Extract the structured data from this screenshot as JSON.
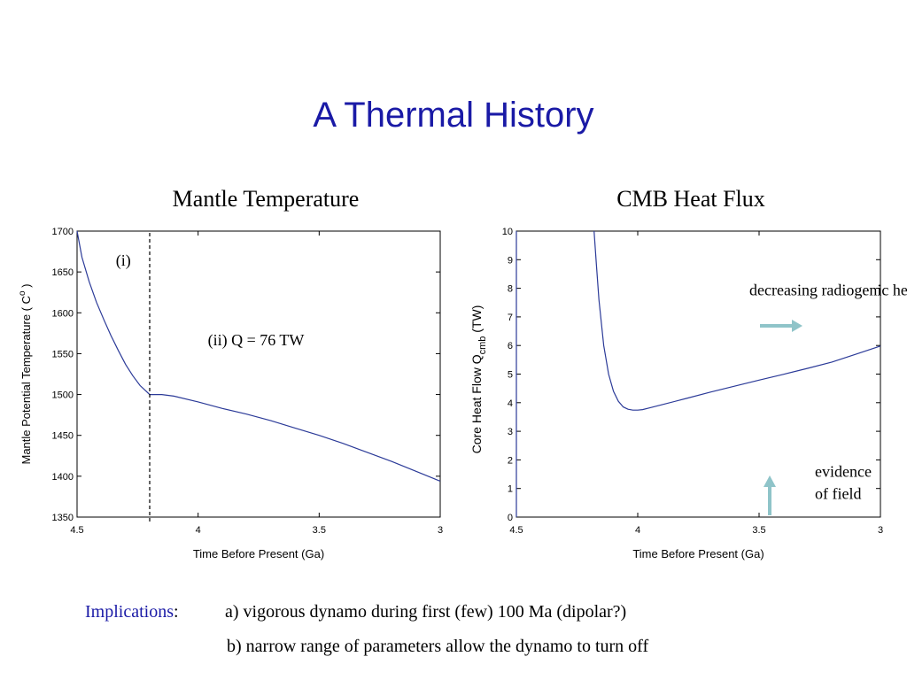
{
  "title": "A Thermal History",
  "implications": {
    "label": "Implications",
    "colon": ":",
    "a": "a)  vigorous dynamo during first (few) 100 Ma  (dipolar?)",
    "b": "b) narrow range of parameters allow the dynamo to turn off"
  },
  "colors": {
    "title": "#1a1aa6",
    "line": "#2b3a98",
    "arrow": "#8fc4c9"
  },
  "chart_data": [
    {
      "type": "line",
      "title": "Mantle Temperature",
      "xlabel": "Time Before Present  (Ga)",
      "ylabel": "Mantle Potential Temperature   ( C )",
      "ylabel_superscript": "o",
      "xlim": [
        4.5,
        3
      ],
      "ylim": [
        1350,
        1700
      ],
      "xticks": [
        4.5,
        4,
        3.5,
        3
      ],
      "xtick_labels": [
        "4.5",
        "4",
        "3.5",
        "3"
      ],
      "yticks": [
        1350,
        1400,
        1450,
        1500,
        1550,
        1600,
        1650,
        1700
      ],
      "ytick_labels": [
        "1350",
        "1400",
        "1450",
        "1500",
        "1550",
        "1600",
        "1650",
        "1700"
      ],
      "grid": false,
      "series": [
        {
          "x": [
            4.5,
            4.48,
            4.45,
            4.42,
            4.39,
            4.36,
            4.33,
            4.3,
            4.27,
            4.24,
            4.2,
            4.18,
            4.15,
            4.1,
            4.0,
            3.9,
            3.8,
            3.7,
            3.6,
            3.5,
            3.4,
            3.3,
            3.2,
            3.1,
            3.0
          ],
          "y": [
            1700,
            1668,
            1638,
            1613,
            1592,
            1572,
            1554,
            1537,
            1523,
            1511,
            1500,
            1500,
            1500,
            1498,
            1491,
            1483,
            1476,
            1468,
            1459,
            1450,
            1440,
            1429,
            1418,
            1406,
            1394
          ]
        }
      ],
      "vline": {
        "x": 4.2,
        "style": "dashed"
      },
      "annotations": [
        {
          "text": "(i)",
          "x": 4.34,
          "y": 1658
        },
        {
          "text": "(ii)  Q = 76 TW",
          "x": 3.96,
          "y": 1560
        }
      ]
    },
    {
      "type": "line",
      "title": "CMB Heat Flux",
      "xlabel": "Time Before Present  (Ga)",
      "ylabel_prefix": "Core Heat Flow Q",
      "ylabel_subscript": "cmb",
      "ylabel_suffix": " (TW)",
      "xlim": [
        4.5,
        3
      ],
      "ylim": [
        0,
        10
      ],
      "xticks": [
        4.5,
        4,
        3.5,
        3
      ],
      "xtick_labels": [
        "4.5",
        "4",
        "3.5",
        "3"
      ],
      "yticks": [
        0,
        1,
        2,
        3,
        4,
        5,
        6,
        7,
        8,
        9,
        10
      ],
      "ytick_labels": [
        "0",
        "1",
        "2",
        "3",
        "4",
        "5",
        "6",
        "7",
        "8",
        "9",
        "10"
      ],
      "grid": false,
      "series": [
        {
          "x": [
            4.5,
            4.5,
            4.5
          ],
          "y": [
            0,
            5,
            10
          ]
        },
        {
          "x": [
            4.18,
            4.17,
            4.16,
            4.14,
            4.12,
            4.1,
            4.08,
            4.06,
            4.04,
            4.02,
            4.0,
            3.98,
            3.95,
            3.9,
            3.8,
            3.7,
            3.6,
            3.5,
            3.4,
            3.3,
            3.2,
            3.1,
            3.0
          ],
          "y": [
            10,
            8.8,
            7.6,
            6.0,
            5.0,
            4.4,
            4.05,
            3.85,
            3.77,
            3.74,
            3.74,
            3.76,
            3.82,
            3.93,
            4.15,
            4.37,
            4.58,
            4.79,
            4.99,
            5.2,
            5.42,
            5.7,
            5.98
          ]
        }
      ],
      "annotations": [
        {
          "text": "decreasing radiogenic heat",
          "x": 3.19,
          "y": 7.75
        },
        {
          "text": "evidence",
          "x": 3.27,
          "y": 1.41
        },
        {
          "text": "of field",
          "x": 3.27,
          "y": 0.63
        }
      ],
      "arrows": [
        {
          "name": "right-arrow",
          "direction": "right"
        },
        {
          "name": "up-arrow",
          "direction": "up"
        }
      ]
    }
  ]
}
